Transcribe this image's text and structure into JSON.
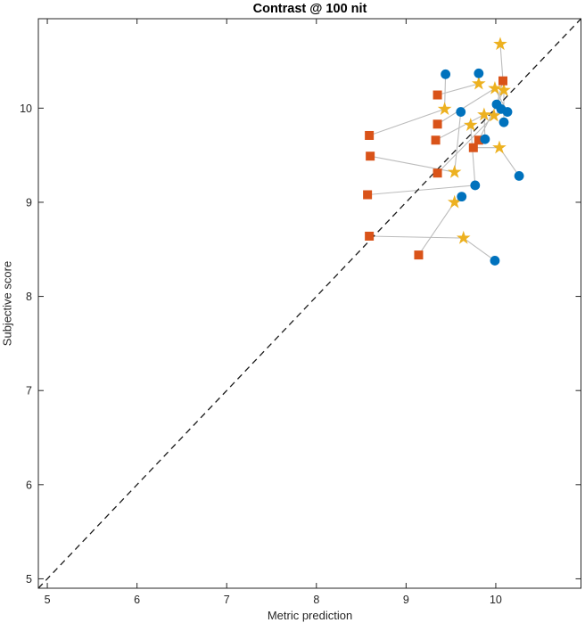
{
  "figure": {
    "title": "Contrast @ 100 nit",
    "xlabel": "Metric prediction",
    "ylabel": "Subjective score"
  },
  "chart_data": {
    "type": "scatter",
    "title": "Contrast @ 100 nit",
    "xlabel": "Metric prediction",
    "ylabel": "Subjective score",
    "xlim": [
      4.9,
      10.95
    ],
    "ylim": [
      4.9,
      10.95
    ],
    "xticks": [
      "5",
      "6",
      "7",
      "8",
      "9",
      "10"
    ],
    "xtick_values": [
      5,
      6,
      7,
      8,
      9,
      10
    ],
    "yticks": [
      "5",
      "6",
      "7",
      "8",
      "9",
      "10"
    ],
    "ytick_values": [
      5,
      6,
      7,
      8,
      9,
      10
    ],
    "grid": false,
    "legend": "none",
    "box": true,
    "axis_color": "#262626",
    "identity_line": {
      "style": "dashed",
      "color": "#1a1a1a",
      "from": [
        4.9,
        4.9
      ],
      "to": [
        10.95,
        10.95
      ]
    },
    "connections": {
      "color": "#bcbcbc",
      "chains": [
        [
          [
            8.59,
            9.71
          ],
          [
            9.43,
            9.99
          ],
          [
            9.44,
            10.36
          ]
        ],
        [
          [
            9.35,
            10.14
          ],
          [
            9.81,
            10.26
          ],
          [
            9.81,
            10.37
          ]
        ],
        [
          [
            10.01,
            10.04
          ],
          [
            10.08,
            10.29
          ],
          [
            10.05,
            10.68
          ]
        ],
        [
          [
            9.35,
            9.83
          ],
          [
            9.99,
            10.21
          ],
          [
            10.13,
            9.96
          ]
        ],
        [
          [
            9.81,
            9.66
          ],
          [
            10.09,
            10.19
          ],
          [
            10.09,
            9.85
          ]
        ],
        [
          [
            9.33,
            9.66
          ],
          [
            9.87,
            9.93
          ],
          [
            9.88,
            9.67
          ]
        ],
        [
          [
            9.75,
            9.58
          ],
          [
            10.04,
            9.58
          ],
          [
            10.26,
            9.28
          ]
        ],
        [
          [
            9.35,
            9.31
          ],
          [
            9.98,
            9.92
          ],
          [
            10.06,
            9.99
          ]
        ],
        [
          [
            8.6,
            9.49
          ],
          [
            9.54,
            9.32
          ],
          [
            9.61,
            9.96
          ]
        ],
        [
          [
            9.14,
            8.44
          ],
          [
            9.54,
            9.0
          ],
          [
            9.62,
            9.06
          ]
        ],
        [
          [
            8.59,
            8.64
          ],
          [
            9.64,
            8.62
          ],
          [
            9.99,
            8.38
          ]
        ],
        [
          [
            8.57,
            9.08
          ],
          [
            9.77,
            9.18
          ],
          [
            9.72,
            9.82
          ]
        ]
      ]
    },
    "series": [
      {
        "name": "stars",
        "marker": "pentagram",
        "color": "#EDB120",
        "points": [
          [
            10.05,
            10.68
          ],
          [
            9.43,
            9.99
          ],
          [
            9.81,
            10.26
          ],
          [
            9.99,
            10.21
          ],
          [
            10.09,
            10.19
          ],
          [
            9.87,
            9.93
          ],
          [
            9.98,
            9.92
          ],
          [
            9.72,
            9.82
          ],
          [
            9.54,
            9.32
          ],
          [
            10.04,
            9.58
          ],
          [
            9.54,
            9.0
          ],
          [
            9.64,
            8.62
          ]
        ]
      },
      {
        "name": "squares",
        "marker": "square",
        "color": "#D95319",
        "points": [
          [
            9.35,
            10.14
          ],
          [
            10.08,
            10.29
          ],
          [
            9.35,
            9.83
          ],
          [
            8.59,
            9.71
          ],
          [
            9.33,
            9.66
          ],
          [
            9.81,
            9.66
          ],
          [
            8.6,
            9.49
          ],
          [
            9.75,
            9.58
          ],
          [
            9.35,
            9.31
          ],
          [
            8.57,
            9.08
          ],
          [
            8.59,
            8.64
          ],
          [
            9.14,
            8.44
          ]
        ]
      },
      {
        "name": "circles",
        "marker": "circle",
        "color": "#0072BD",
        "points": [
          [
            9.44,
            10.36
          ],
          [
            9.81,
            10.37
          ],
          [
            9.61,
            9.96
          ],
          [
            10.01,
            10.04
          ],
          [
            10.06,
            9.99
          ],
          [
            10.13,
            9.96
          ],
          [
            10.09,
            9.85
          ],
          [
            9.88,
            9.67
          ],
          [
            10.26,
            9.28
          ],
          [
            9.77,
            9.18
          ],
          [
            9.62,
            9.06
          ],
          [
            9.99,
            8.38
          ]
        ]
      }
    ]
  }
}
